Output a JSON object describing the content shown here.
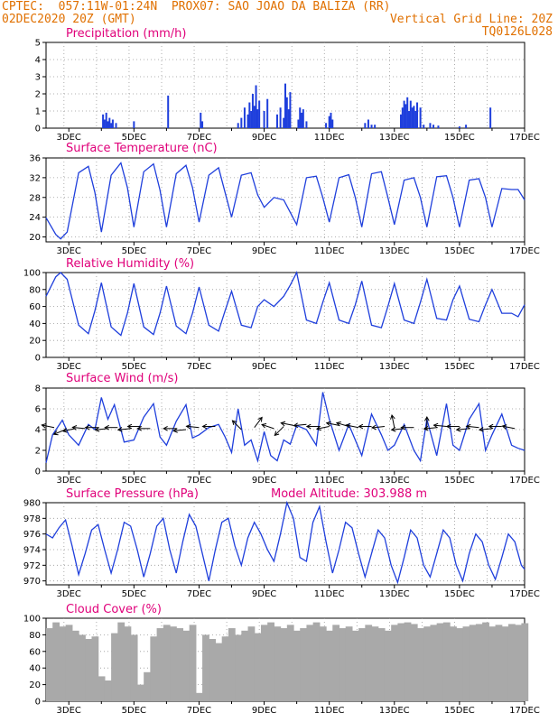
{
  "header": {
    "line1_left": "CPTEC:  057:11W-01:24N  PROX07: SAO JOAO DA BALIZA (RR)",
    "line2_left": "02DEC2020 20Z (GMT)",
    "line2_right": "Vertical Grid Line: 20Z",
    "line3_right": "TQ0126L028"
  },
  "colors": {
    "header": "#e07000",
    "title": "#e0007a",
    "series": "#1f3fdc",
    "cloud": "#a9a9a9"
  },
  "chart_data": [
    {
      "type": "bar",
      "id": "precip",
      "title": "Precipitation (mm/h)",
      "ylim": [
        0,
        5
      ],
      "yticks": [
        0,
        1,
        2,
        3,
        4,
        5
      ],
      "xlim": [
        2.3,
        17.0
      ],
      "xticks": [
        "3DEC",
        "5DEC",
        "7DEC",
        "9DEC",
        "11DEC",
        "13DEC",
        "15DEC",
        "17DEC"
      ],
      "x": [
        4.05,
        4.1,
        4.15,
        4.2,
        4.25,
        4.3,
        4.35,
        4.45,
        5.0,
        6.05,
        7.05,
        7.1,
        8.2,
        8.3,
        8.4,
        8.5,
        8.55,
        8.6,
        8.65,
        8.7,
        8.75,
        8.8,
        8.85,
        9.0,
        9.1,
        9.4,
        9.5,
        9.6,
        9.65,
        9.7,
        9.75,
        9.8,
        10.05,
        10.1,
        10.15,
        10.2,
        10.3,
        10.9,
        11.0,
        11.05,
        11.1,
        12.1,
        12.2,
        12.3,
        12.4,
        13.2,
        13.25,
        13.3,
        13.35,
        13.4,
        13.45,
        13.5,
        13.55,
        13.6,
        13.65,
        13.7,
        13.8,
        13.9,
        14.1,
        14.2,
        14.35,
        15.0,
        15.2,
        15.95
      ],
      "values": [
        0.8,
        0.5,
        0.9,
        0.4,
        0.6,
        0.3,
        0.5,
        0.3,
        0.4,
        1.9,
        0.9,
        0.4,
        0.3,
        0.6,
        1.2,
        0.8,
        1.5,
        1.0,
        2.0,
        1.3,
        2.5,
        1.1,
        1.6,
        1.0,
        1.7,
        0.8,
        1.2,
        0.6,
        2.6,
        1.8,
        1.1,
        2.1,
        0.5,
        1.2,
        0.9,
        1.1,
        0.4,
        0.3,
        0.7,
        0.9,
        0.5,
        0.3,
        0.5,
        0.2,
        0.2,
        0.8,
        1.2,
        1.6,
        1.4,
        1.8,
        1.0,
        1.6,
        1.2,
        1.3,
        1.0,
        1.5,
        1.2,
        0.2,
        0.3,
        0.2,
        0.15,
        0.1,
        0.2,
        1.2
      ]
    },
    {
      "type": "line",
      "id": "temp",
      "title": "Surface Temperature (nC)",
      "ylim": [
        19,
        36
      ],
      "yticks": [
        20,
        24,
        28,
        32,
        36
      ],
      "xlim": [
        2.3,
        17.0
      ],
      "xticks": [
        "3DEC",
        "5DEC",
        "7DEC",
        "9DEC",
        "11DEC",
        "13DEC",
        "15DEC",
        "17DEC"
      ],
      "x": [
        2.3,
        2.6,
        2.75,
        2.95,
        3.3,
        3.6,
        3.8,
        4.0,
        4.3,
        4.6,
        4.8,
        5.0,
        5.3,
        5.6,
        5.8,
        6.0,
        6.3,
        6.6,
        6.8,
        7.0,
        7.3,
        7.6,
        7.8,
        8.0,
        8.3,
        8.6,
        8.8,
        9.0,
        9.3,
        9.6,
        9.8,
        10.0,
        10.3,
        10.6,
        10.8,
        11.0,
        11.3,
        11.6,
        11.8,
        12.0,
        12.3,
        12.6,
        12.8,
        13.0,
        13.3,
        13.6,
        13.8,
        14.0,
        14.3,
        14.6,
        14.8,
        15.0,
        15.3,
        15.6,
        15.8,
        16.0,
        16.3,
        16.6,
        16.8,
        17.0
      ],
      "values": [
        23.9,
        20.5,
        19.6,
        21,
        33,
        34.3,
        29,
        21,
        32.5,
        35,
        30,
        22,
        33.2,
        34.8,
        29.5,
        22,
        32.8,
        34.5,
        30,
        23,
        32.5,
        34,
        29,
        24,
        32.5,
        33,
        28.5,
        26,
        28,
        27.5,
        25,
        22.5,
        32,
        32.3,
        28,
        23,
        32,
        32.6,
        28,
        22,
        32.8,
        33.2,
        28,
        22.5,
        31.5,
        32,
        28,
        22,
        32.2,
        32.4,
        28,
        22,
        31.5,
        31.8,
        28,
        22,
        29.8,
        29.6,
        29.6,
        27.5
      ]
    },
    {
      "type": "line",
      "id": "rh",
      "title": "Relative Humidity (%)",
      "ylim": [
        0,
        100
      ],
      "yticks": [
        0,
        20,
        40,
        60,
        80,
        100
      ],
      "xlim": [
        2.3,
        17.0
      ],
      "xticks": [
        "3DEC",
        "5DEC",
        "7DEC",
        "9DEC",
        "11DEC",
        "13DEC",
        "15DEC",
        "17DEC"
      ],
      "x": [
        2.3,
        2.6,
        2.75,
        2.95,
        3.3,
        3.6,
        3.8,
        4.0,
        4.3,
        4.6,
        4.8,
        5.0,
        5.3,
        5.6,
        5.8,
        6.0,
        6.3,
        6.6,
        6.8,
        7.0,
        7.3,
        7.6,
        7.8,
        8.0,
        8.3,
        8.6,
        8.8,
        9.0,
        9.3,
        9.6,
        9.8,
        10.0,
        10.3,
        10.6,
        10.8,
        11.0,
        11.3,
        11.6,
        11.8,
        12.0,
        12.3,
        12.6,
        12.8,
        13.0,
        13.3,
        13.6,
        13.8,
        14.0,
        14.3,
        14.6,
        14.8,
        15.0,
        15.3,
        15.6,
        15.8,
        16.0,
        16.3,
        16.6,
        16.8,
        17.0
      ],
      "values": [
        72,
        95,
        100,
        92,
        38,
        28,
        55,
        88,
        36,
        26,
        52,
        87,
        36,
        27,
        52,
        84,
        37,
        28,
        52,
        83,
        38,
        31,
        55,
        78,
        38,
        35,
        60,
        68,
        60,
        72,
        85,
        100,
        44,
        40,
        65,
        88,
        44,
        40,
        62,
        90,
        38,
        35,
        60,
        87,
        44,
        40,
        65,
        92,
        46,
        44,
        68,
        84,
        45,
        42,
        62,
        80,
        52,
        52,
        48,
        62
      ]
    },
    {
      "type": "line",
      "id": "wind",
      "title": "Surface Wind (m/s)",
      "ylim": [
        0,
        8
      ],
      "yticks": [
        0,
        2,
        4,
        6,
        8
      ],
      "xlim": [
        2.3,
        17.0
      ],
      "xticks": [
        "3DEC",
        "5DEC",
        "7DEC",
        "9DEC",
        "11DEC",
        "13DEC",
        "15DEC",
        "17DEC"
      ],
      "x": [
        2.3,
        2.5,
        2.8,
        3.0,
        3.3,
        3.6,
        3.8,
        4.0,
        4.2,
        4.4,
        4.7,
        5.0,
        5.3,
        5.6,
        5.8,
        6.0,
        6.3,
        6.6,
        6.8,
        7.0,
        7.3,
        7.6,
        7.8,
        8.0,
        8.2,
        8.4,
        8.6,
        8.8,
        9.0,
        9.2,
        9.4,
        9.6,
        9.8,
        10.0,
        10.3,
        10.6,
        10.8,
        11.0,
        11.3,
        11.6,
        11.8,
        12.0,
        12.3,
        12.6,
        12.8,
        13.0,
        13.3,
        13.6,
        13.8,
        14.0,
        14.3,
        14.6,
        14.8,
        15.0,
        15.3,
        15.6,
        15.8,
        16.0,
        16.3,
        16.6,
        16.8,
        17.0
      ],
      "values": [
        0.8,
        3.5,
        4.9,
        3.5,
        2.5,
        4.5,
        4.0,
        7.1,
        5.0,
        6.4,
        2.8,
        3.0,
        5.2,
        6.5,
        3.3,
        2.5,
        4.8,
        6.4,
        3.2,
        3.5,
        4.2,
        4.5,
        3.3,
        1.8,
        6.0,
        2.5,
        3.0,
        1.0,
        3.8,
        1.5,
        1.0,
        3.0,
        2.6,
        4.4,
        4.0,
        2.5,
        7.6,
        5.0,
        2.0,
        4.5,
        3.0,
        1.5,
        5.5,
        3.5,
        2.0,
        2.5,
        4.5,
        2.0,
        1.0,
        5.0,
        1.5,
        6.5,
        2.5,
        2.0,
        5.0,
        6.5,
        2.0,
        3.5,
        5.5,
        2.5,
        2.2,
        2.0
      ],
      "arrows": {
        "x": [
          2.55,
          2.9,
          3.2,
          3.5,
          3.9,
          4.2,
          4.5,
          4.9,
          5.2,
          5.5,
          6.3,
          6.6,
          7.0,
          7.5,
          8.3,
          8.7,
          9.3,
          9.6,
          9.9,
          10.3,
          10.7,
          11.0,
          11.3,
          11.6,
          11.9,
          12.3,
          12.7,
          13.0,
          13.3,
          13.6,
          14.0,
          14.3,
          14.6,
          15.0,
          15.3,
          15.6,
          16.0,
          16.3,
          16.7
        ],
        "u": [
          -1,
          -1,
          -1,
          -1,
          -1,
          -1,
          -1,
          -1,
          -1,
          -1,
          -1,
          -1,
          -1,
          -1,
          -0.5,
          0.6,
          -0.6,
          -0.5,
          -1,
          -1,
          -1,
          -1,
          -1,
          -1,
          -1,
          -1,
          -1,
          -0.2,
          -1,
          -1,
          0,
          -1,
          -1,
          -1,
          -1,
          -1,
          -1,
          -1,
          -1
        ],
        "v": [
          0.2,
          -0.4,
          -0.2,
          0.1,
          0,
          -0.1,
          0,
          -0.1,
          0,
          0,
          0,
          -0.1,
          0.1,
          0,
          0.5,
          0.8,
          0.2,
          -0.5,
          0.2,
          -0.1,
          0,
          -0.2,
          0.2,
          0.3,
          0.2,
          0,
          -0.1,
          1,
          -0.1,
          0,
          1,
          -0.1,
          0.1,
          0,
          -0.1,
          0.1,
          -0.1,
          0,
          0.2
        ],
        "y": [
          4.2,
          4.0,
          4.1,
          4.1,
          4.2,
          4.1,
          4.2,
          4.1,
          4.3,
          4.1,
          4.1,
          4.0,
          4.2,
          4.3,
          4.0,
          4.2,
          4.1,
          4.3,
          4.4,
          4.5,
          4.3,
          4.3,
          4.4,
          4.3,
          4.2,
          4.3,
          4.3,
          4.2,
          4.1,
          4.2,
          4.0,
          4.2,
          4.3,
          4.3,
          4.1,
          4.2,
          4.1,
          4.3,
          4.1
        ]
      }
    },
    {
      "type": "line",
      "id": "press",
      "title": "Surface Pressure (hPa)",
      "annotation": "Model Altitude: 303.988 m",
      "ylim": [
        969.5,
        980
      ],
      "yticks": [
        970,
        972,
        974,
        976,
        978,
        980
      ],
      "xlim": [
        2.3,
        17.0
      ],
      "xticks": [
        "3DEC",
        "5DEC",
        "7DEC",
        "9DEC",
        "11DEC",
        "13DEC",
        "15DEC",
        "17DEC"
      ],
      "x": [
        2.3,
        2.5,
        2.7,
        2.9,
        3.1,
        3.3,
        3.5,
        3.7,
        3.9,
        4.1,
        4.3,
        4.5,
        4.7,
        4.9,
        5.1,
        5.3,
        5.5,
        5.7,
        5.9,
        6.1,
        6.3,
        6.5,
        6.7,
        6.9,
        7.1,
        7.3,
        7.5,
        7.7,
        7.9,
        8.1,
        8.3,
        8.5,
        8.7,
        8.9,
        9.1,
        9.3,
        9.5,
        9.7,
        9.9,
        10.1,
        10.3,
        10.5,
        10.7,
        10.9,
        11.1,
        11.3,
        11.5,
        11.7,
        11.9,
        12.1,
        12.3,
        12.5,
        12.7,
        12.9,
        13.1,
        13.3,
        13.5,
        13.7,
        13.9,
        14.1,
        14.3,
        14.5,
        14.7,
        14.9,
        15.1,
        15.3,
        15.5,
        15.7,
        15.9,
        16.1,
        16.3,
        16.5,
        16.7,
        16.9,
        17.0
      ],
      "values": [
        976,
        975.5,
        976.8,
        977.8,
        974.5,
        970.8,
        973.5,
        976.5,
        977.2,
        974,
        971,
        974,
        977.5,
        977,
        974,
        970.5,
        973.5,
        977,
        978,
        974,
        971,
        975,
        978.5,
        977,
        973.5,
        970,
        974,
        977.5,
        978,
        974.5,
        972,
        975.5,
        977.5,
        976,
        974,
        972.5,
        976,
        980,
        978,
        973,
        972.5,
        977.5,
        979.5,
        975,
        971,
        974,
        977.5,
        976.8,
        973.5,
        970.5,
        973.5,
        976.5,
        975.5,
        972,
        969.8,
        973,
        976.5,
        975.5,
        972,
        970.5,
        973.5,
        976.5,
        975.5,
        972,
        970,
        973.5,
        976,
        975,
        972,
        970.2,
        973,
        976,
        975,
        972,
        971.5
      ]
    },
    {
      "type": "bar",
      "id": "cloud",
      "title": "Cloud Cover (%)",
      "ylim": [
        0,
        100
      ],
      "yticks": [
        0,
        20,
        40,
        60,
        80,
        100
      ],
      "xlim": [
        2.3,
        17.0
      ],
      "xticks": [
        "3DEC",
        "5DEC",
        "7DEC",
        "9DEC",
        "11DEC",
        "13DEC",
        "15DEC",
        "17DEC"
      ],
      "x": [
        2.3,
        2.5,
        2.7,
        2.9,
        3.1,
        3.3,
        3.5,
        3.7,
        3.9,
        4.1,
        4.3,
        4.5,
        4.7,
        4.9,
        5.1,
        5.3,
        5.5,
        5.7,
        5.9,
        6.1,
        6.3,
        6.5,
        6.7,
        6.9,
        7.1,
        7.3,
        7.5,
        7.7,
        7.9,
        8.1,
        8.3,
        8.5,
        8.7,
        8.9,
        9.1,
        9.3,
        9.5,
        9.7,
        9.9,
        10.1,
        10.3,
        10.5,
        10.7,
        10.9,
        11.1,
        11.3,
        11.5,
        11.7,
        11.9,
        12.1,
        12.3,
        12.5,
        12.7,
        12.9,
        13.1,
        13.3,
        13.5,
        13.7,
        13.9,
        14.1,
        14.3,
        14.5,
        14.7,
        14.9,
        15.1,
        15.3,
        15.5,
        15.7,
        15.9,
        16.1,
        16.3,
        16.5,
        16.7,
        16.9
      ],
      "values": [
        88,
        95,
        90,
        92,
        85,
        80,
        75,
        78,
        30,
        25,
        82,
        95,
        90,
        80,
        20,
        35,
        78,
        88,
        92,
        90,
        88,
        85,
        92,
        10,
        80,
        75,
        70,
        78,
        88,
        80,
        85,
        90,
        82,
        92,
        95,
        90,
        88,
        92,
        85,
        88,
        92,
        95,
        90,
        85,
        92,
        88,
        90,
        85,
        88,
        92,
        90,
        88,
        85,
        92,
        94,
        95,
        93,
        88,
        90,
        92,
        94,
        95,
        90,
        88,
        90,
        92,
        93,
        95,
        90,
        92,
        90,
        93,
        92,
        94
      ]
    }
  ]
}
